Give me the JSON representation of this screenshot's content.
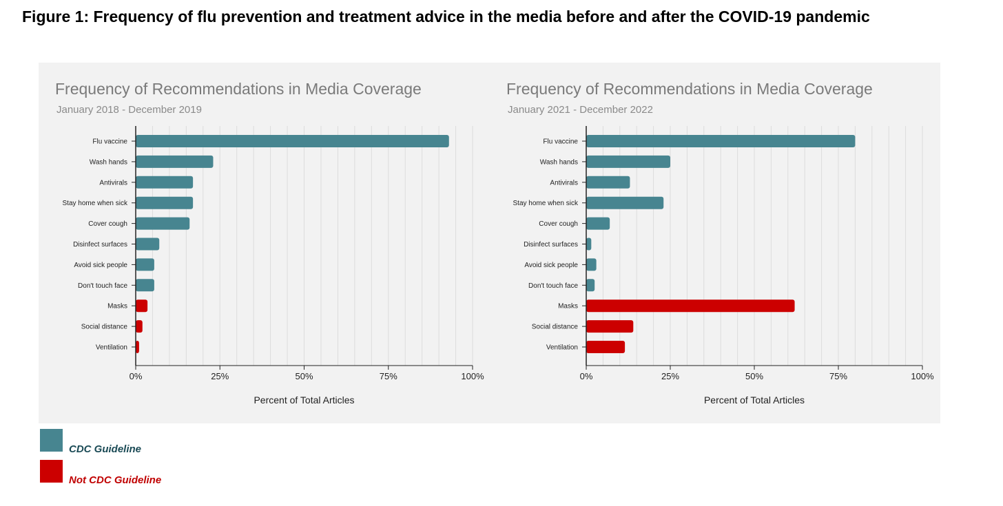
{
  "figure_title": "Figure 1: Frequency of flu prevention and treatment advice in the media before and after the COVID-19 pandemic",
  "colors": {
    "cdc": "#478590",
    "not_cdc": "#cc0000",
    "panel_bg": "#f2f2f2",
    "grid": "#dcdcdc"
  },
  "legend": [
    {
      "label": "CDC Guideline",
      "color": "#478590",
      "text_color": "#1a4a55"
    },
    {
      "label": "Not CDC Guideline",
      "color": "#cc0000",
      "text_color": "#c00000"
    }
  ],
  "chart_data": [
    {
      "type": "bar",
      "orientation": "horizontal",
      "title": "Frequency of Recommendations in Media Coverage",
      "subtitle": "January 2018 - December 2019",
      "xlabel": "Percent of Total Articles",
      "ylabel": "",
      "xlim": [
        0,
        100
      ],
      "x_ticks": [
        "0%",
        "25%",
        "50%",
        "75%",
        "100%"
      ],
      "grid": true,
      "categories": [
        "Flu vaccine",
        "Wash hands",
        "Antivirals",
        "Stay home when sick",
        "Cover cough",
        "Disinfect surfaces",
        "Avoid sick people",
        "Don't touch face",
        "Masks",
        "Social distance",
        "Ventilation"
      ],
      "values": [
        93,
        23,
        17,
        17,
        16,
        7,
        5.5,
        5.5,
        3.5,
        2,
        1
      ],
      "guideline": [
        "cdc",
        "cdc",
        "cdc",
        "cdc",
        "cdc",
        "cdc",
        "cdc",
        "cdc",
        "not_cdc",
        "not_cdc",
        "not_cdc"
      ]
    },
    {
      "type": "bar",
      "orientation": "horizontal",
      "title": "Frequency of Recommendations in Media Coverage",
      "subtitle": "January 2021 - December 2022",
      "xlabel": "Percent of Total Articles",
      "ylabel": "",
      "xlim": [
        0,
        100
      ],
      "x_ticks": [
        "0%",
        "25%",
        "50%",
        "75%",
        "100%"
      ],
      "grid": true,
      "categories": [
        "Flu vaccine",
        "Wash hands",
        "Antivirals",
        "Stay home when sick",
        "Cover cough",
        "Disinfect surfaces",
        "Avoid sick people",
        "Don't touch face",
        "Masks",
        "Social distance",
        "Ventilation"
      ],
      "values": [
        80,
        25,
        13,
        23,
        7,
        1.5,
        3,
        2.5,
        62,
        14,
        11.5
      ],
      "guideline": [
        "cdc",
        "cdc",
        "cdc",
        "cdc",
        "cdc",
        "cdc",
        "cdc",
        "cdc",
        "not_cdc",
        "not_cdc",
        "not_cdc"
      ]
    }
  ]
}
